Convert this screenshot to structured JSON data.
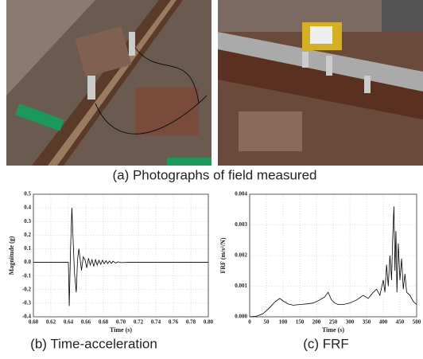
{
  "photos_caption": "(a) Photographs of field measured",
  "chart_data": [
    {
      "type": "line",
      "caption": "(b) Time-acceleration",
      "xlabel": "Time (s)",
      "ylabel": "Magnitude (g)",
      "color": "#000000",
      "grid": true,
      "xlim": [
        0.6,
        0.8
      ],
      "xticks": [
        {
          "value": 0.6,
          "label": "0.60"
        },
        {
          "value": 0.62,
          "label": "0.62"
        },
        {
          "value": 0.64,
          "label": "0.64"
        },
        {
          "value": 0.66,
          "label": "0.66"
        },
        {
          "value": 0.68,
          "label": "0.68"
        },
        {
          "value": 0.7,
          "label": "0.70"
        },
        {
          "value": 0.72,
          "label": "0.72"
        },
        {
          "value": 0.74,
          "label": "0.74"
        },
        {
          "value": 0.76,
          "label": "0.76"
        },
        {
          "value": 0.78,
          "label": "0.78"
        },
        {
          "value": 0.8,
          "label": "0.80"
        }
      ],
      "ylim": [
        -0.4,
        0.5
      ],
      "yticks": [
        -0.4,
        -0.3,
        -0.2,
        -0.1,
        {
          "value": 0,
          "label": "0.0"
        },
        0.1,
        0.2,
        0.3,
        0.4,
        0.5
      ],
      "x": [
        0.6,
        0.64,
        0.6405,
        0.641,
        0.6425,
        0.644,
        0.6455,
        0.647,
        0.649,
        0.6505,
        0.652,
        0.6535,
        0.655,
        0.657,
        0.659,
        0.661,
        0.663,
        0.665,
        0.667,
        0.669,
        0.671,
        0.673,
        0.675,
        0.677,
        0.679,
        0.681,
        0.683,
        0.685,
        0.687,
        0.689,
        0.691,
        0.694,
        0.697,
        0.7,
        0.71,
        0.8
      ],
      "values": [
        0,
        0,
        -0.15,
        -0.32,
        0.1,
        0.4,
        0.15,
        -0.08,
        -0.22,
        0.02,
        0.1,
        0.02,
        -0.06,
        0.04,
        0.02,
        -0.04,
        0.03,
        -0.02,
        0.02,
        -0.03,
        0.02,
        -0.02,
        0.015,
        -0.015,
        0.015,
        -0.01,
        0.012,
        -0.01,
        0.01,
        -0.008,
        0.008,
        -0.005,
        0.004,
        -0.002,
        0,
        0
      ]
    },
    {
      "type": "line",
      "caption": "(c) FRF",
      "xlabel": "Time (s)",
      "ylabel": "FRF (m/s²/N)",
      "color": "#000000",
      "grid": true,
      "xlim": [
        0,
        500
      ],
      "xticks": [
        0,
        50,
        100,
        150,
        200,
        250,
        300,
        350,
        400,
        450,
        500
      ],
      "ylim": [
        0,
        0.004
      ],
      "yticks": [
        {
          "value": 0,
          "label": "0.000"
        },
        {
          "value": 0.001,
          "label": "0.001"
        },
        {
          "value": 0.002,
          "label": "0.002"
        },
        {
          "value": 0.003,
          "label": "0.003"
        },
        {
          "value": 0.004,
          "label": "0.004"
        }
      ],
      "x": [
        0,
        20,
        40,
        60,
        75,
        90,
        100,
        115,
        130,
        150,
        170,
        190,
        210,
        225,
        235,
        245,
        255,
        265,
        280,
        300,
        320,
        340,
        355,
        370,
        380,
        390,
        400,
        405,
        410,
        415,
        420,
        425,
        428,
        432,
        435,
        438,
        441,
        445,
        450,
        455,
        460,
        465,
        470,
        480,
        490,
        500
      ],
      "values": [
        0,
        2e-05,
        0.0001,
        0.0003,
        0.00048,
        0.0006,
        0.00052,
        0.00042,
        0.00038,
        0.0004,
        0.00042,
        0.00045,
        0.00055,
        0.00065,
        0.0008,
        0.00055,
        0.00045,
        0.0004,
        0.0004,
        0.00045,
        0.00055,
        0.0007,
        0.0006,
        0.0008,
        0.0009,
        0.0007,
        0.0012,
        0.0008,
        0.0017,
        0.001,
        0.002,
        0.0012,
        0.0025,
        0.0036,
        0.0015,
        0.0028,
        0.0008,
        0.0024,
        0.0012,
        0.0019,
        0.0009,
        0.0014,
        0.0008,
        0.0007,
        0.0005,
        0.0004
      ]
    }
  ]
}
